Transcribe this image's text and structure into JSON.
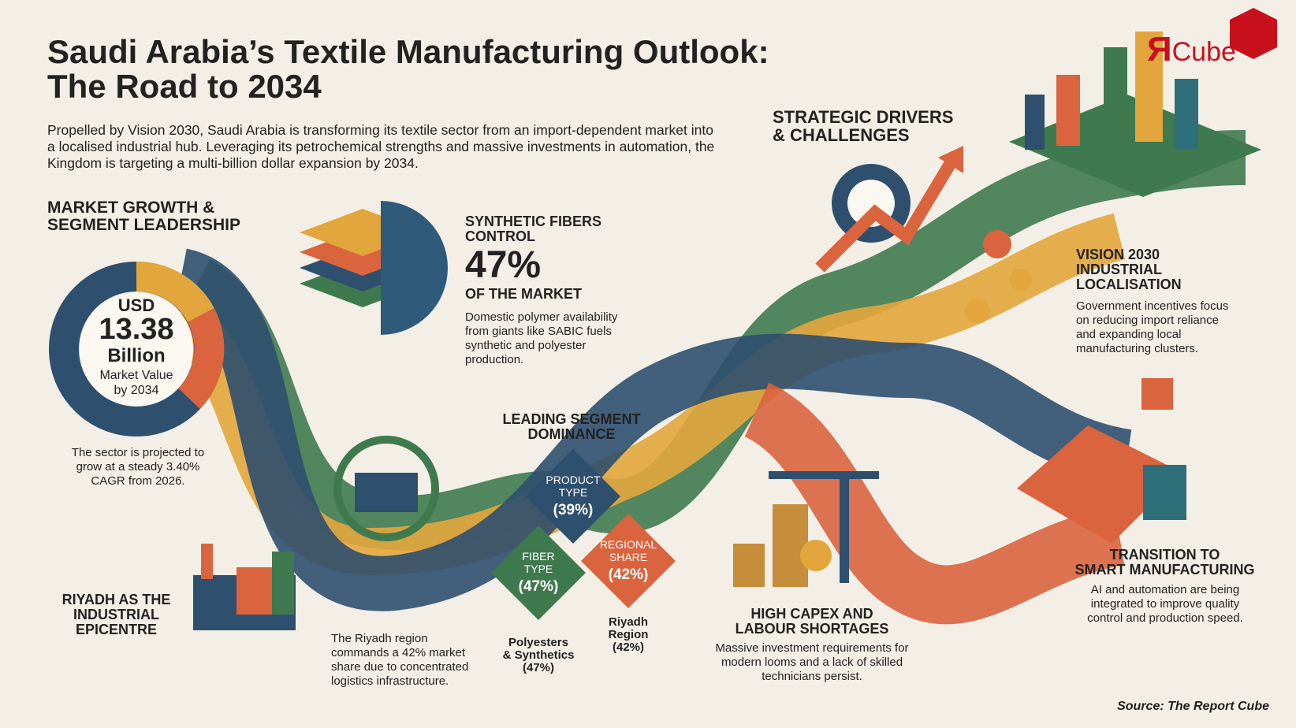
{
  "header": {
    "title": [
      "Saudi Arabia’s Textile Manufacturing Outlook:",
      "The Road to 2034"
    ],
    "intro": "Propelled by Vision 2030, Saudi Arabia is transforming its textile sector from an import-dependent market into a localised industrial hub. Leveraging its petrochemical strengths and massive investments in automation, the Kingdom is targeting a multi-billion dollar expansion by 2034."
  },
  "logo": {
    "mark": "Я",
    "text": "Cube"
  },
  "market_growth": {
    "heading": [
      "MARKET GROWTH &",
      "SEGMENT LEADERSHIP"
    ],
    "donut": {
      "currency": "USD",
      "value": "13.38",
      "unit": "Billion",
      "caption": [
        "Market Value",
        "by 2034"
      ]
    },
    "note": "The sector is projected to grow at a steady 3.40% CAGR from 2026."
  },
  "synthetic": {
    "heading": [
      "SYNTHETIC FIBERS",
      "CONTROL"
    ],
    "figure": "47%",
    "subheading": "OF THE MARKET",
    "text": "Domestic polymer availability from giants like SABIC fuels synthetic and polyester production."
  },
  "strategic": {
    "heading": [
      "STRATEGIC DRIVERS",
      "& CHALLENGES"
    ]
  },
  "vision": {
    "heading": [
      "VISION 2030",
      "INDUSTRIAL",
      "LOCALISATION"
    ],
    "text": "Government incentives focus on reducing import reliance and expanding local manufacturing clusters."
  },
  "leading_segment": {
    "heading": [
      "LEADING SEGMENT",
      "DOMINANCE"
    ],
    "diamonds": [
      {
        "label": [
          "PRODUCT",
          "TYPE"
        ],
        "value": "(39%)"
      },
      {
        "label": [
          "FIBER",
          "TYPE"
        ],
        "value": "(47%)"
      },
      {
        "label": [
          "REGIONAL",
          "SHARE"
        ],
        "value": "(42%)"
      }
    ],
    "captions": [
      [
        "Polyesters",
        "& Synthetics",
        "(47%)"
      ],
      [
        "Riyadh",
        "Region",
        "(42%)"
      ]
    ]
  },
  "riyadh": {
    "heading": [
      "RIYADH AS THE",
      "INDUSTRIAL",
      "EPICENTRE"
    ],
    "text": "The Riyadh region commands a 42% market share due to concentrated logistics infrastructure."
  },
  "capex": {
    "heading": [
      "HIGH CAPEX AND",
      "LABOUR SHORTAGES"
    ],
    "text": "Massive investment requirements for modern looms and a lack of skilled technicians persist."
  },
  "smart": {
    "heading": [
      "TRANSITION TO",
      "SMART MANUFACTURING"
    ],
    "text": "AI and automation are being integrated to improve quality control and production speed."
  },
  "source": "Source: The Report Cube"
}
